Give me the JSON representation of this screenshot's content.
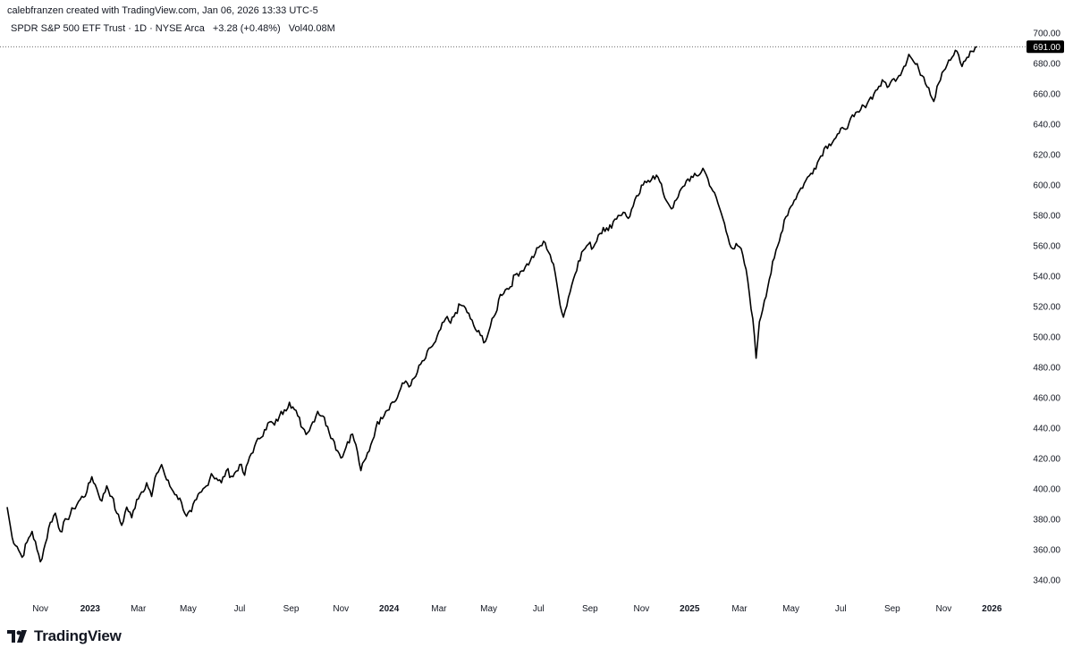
{
  "header": {
    "credit": "calebfranzen created with TradingView.com, Jan 06, 2026 13:33 UTC-5"
  },
  "legend": {
    "symbol": "SPDR S&P 500 ETF Trust · 1D · NYSE Arca",
    "change": "+3.28 (+0.48%)",
    "volume": "Vol40.08M"
  },
  "footer": {
    "brand": "TradingView"
  },
  "colors": {
    "line": "#000000",
    "price_tag_bg": "#000000",
    "price_tag_text": "#ffffff",
    "text": "#131722"
  },
  "chart_data": {
    "type": "line",
    "series": [
      {
        "values": [
          [
            0,
            388
          ],
          [
            3,
            368
          ],
          [
            6,
            362
          ],
          [
            9,
            355
          ],
          [
            12,
            365
          ],
          [
            15,
            372
          ],
          [
            18,
            360
          ],
          [
            20,
            352
          ],
          [
            23,
            364
          ],
          [
            26,
            378
          ],
          [
            29,
            384
          ],
          [
            32,
            372
          ],
          [
            36,
            380
          ],
          [
            40,
            387
          ],
          [
            44,
            393
          ],
          [
            48,
            398
          ],
          [
            51,
            408
          ],
          [
            54,
            400
          ],
          [
            57,
            392
          ],
          [
            60,
            402
          ],
          [
            63,
            395
          ],
          [
            66,
            384
          ],
          [
            69,
            376
          ],
          [
            72,
            388
          ],
          [
            75,
            381
          ],
          [
            78,
            393
          ],
          [
            81,
            398
          ],
          [
            84,
            404
          ],
          [
            87,
            395
          ],
          [
            90,
            410
          ],
          [
            93,
            416
          ],
          [
            96,
            406
          ],
          [
            99,
            400
          ],
          [
            102,
            396
          ],
          [
            105,
            391
          ],
          [
            108,
            382
          ],
          [
            111,
            385
          ],
          [
            114,
            393
          ],
          [
            117,
            398
          ],
          [
            120,
            402
          ],
          [
            123,
            410
          ],
          [
            126,
            407
          ],
          [
            129,
            404
          ],
          [
            132,
            412
          ],
          [
            136,
            408
          ],
          [
            140,
            416
          ],
          [
            143,
            409
          ],
          [
            146,
            421
          ],
          [
            149,
            428
          ],
          [
            152,
            433
          ],
          [
            155,
            439
          ],
          [
            158,
            444
          ],
          [
            161,
            442
          ],
          [
            164,
            448
          ],
          [
            167,
            452
          ],
          [
            170,
            457
          ],
          [
            172,
            454
          ],
          [
            175,
            448
          ],
          [
            178,
            440
          ],
          [
            181,
            437
          ],
          [
            184,
            444
          ],
          [
            187,
            451
          ],
          [
            190,
            448
          ],
          [
            193,
            441
          ],
          [
            196,
            433
          ],
          [
            199,
            425
          ],
          [
            202,
            421
          ],
          [
            205,
            431
          ],
          [
            208,
            436
          ],
          [
            211,
            424
          ],
          [
            213,
            412
          ],
          [
            216,
            420
          ],
          [
            219,
            429
          ],
          [
            222,
            440
          ],
          [
            225,
            447
          ],
          [
            228,
            451
          ],
          [
            231,
            456
          ],
          [
            234,
            458
          ],
          [
            237,
            466
          ],
          [
            240,
            471
          ],
          [
            243,
            468
          ],
          [
            246,
            474
          ],
          [
            249,
            482
          ],
          [
            252,
            486
          ],
          [
            255,
            493
          ],
          [
            258,
            497
          ],
          [
            261,
            505
          ],
          [
            264,
            512
          ],
          [
            267,
            509
          ],
          [
            270,
            516
          ],
          [
            273,
            521
          ],
          [
            276,
            519
          ],
          [
            279,
            512
          ],
          [
            282,
            505
          ],
          [
            285,
            501
          ],
          [
            288,
            497
          ],
          [
            291,
            507
          ],
          [
            294,
            515
          ],
          [
            297,
            528
          ],
          [
            300,
            531
          ],
          [
            303,
            533
          ],
          [
            306,
            541
          ],
          [
            309,
            543
          ],
          [
            312,
            546
          ],
          [
            315,
            550
          ],
          [
            318,
            555
          ],
          [
            321,
            560
          ],
          [
            324,
            562
          ],
          [
            327,
            554
          ],
          [
            330,
            542
          ],
          [
            332,
            528
          ],
          [
            335,
            513
          ],
          [
            338,
            526
          ],
          [
            341,
            538
          ],
          [
            344,
            550
          ],
          [
            347,
            557
          ],
          [
            350,
            561
          ],
          [
            353,
            559
          ],
          [
            356,
            567
          ],
          [
            359,
            572
          ],
          [
            362,
            570
          ],
          [
            365,
            576
          ],
          [
            368,
            580
          ],
          [
            371,
            582
          ],
          [
            374,
            578
          ],
          [
            377,
            586
          ],
          [
            380,
            593
          ],
          [
            383,
            600
          ],
          [
            386,
            603
          ],
          [
            389,
            606
          ],
          [
            392,
            605
          ],
          [
            395,
            595
          ],
          [
            398,
            588
          ],
          [
            401,
            585
          ],
          [
            404,
            592
          ],
          [
            407,
            599
          ],
          [
            410,
            604
          ],
          [
            413,
            605
          ],
          [
            416,
            606
          ],
          [
            419,
            611
          ],
          [
            422,
            604
          ],
          [
            425,
            596
          ],
          [
            428,
            588
          ],
          [
            431,
            578
          ],
          [
            434,
            566
          ],
          [
            437,
            558
          ],
          [
            440,
            560
          ],
          [
            443,
            554
          ],
          [
            446,
            537
          ],
          [
            449,
            512
          ],
          [
            451,
            486
          ],
          [
            453,
            510
          ],
          [
            456,
            524
          ],
          [
            459,
            538
          ],
          [
            462,
            552
          ],
          [
            465,
            563
          ],
          [
            468,
            577
          ],
          [
            471,
            584
          ],
          [
            474,
            590
          ],
          [
            477,
            596
          ],
          [
            480,
            601
          ],
          [
            483,
            606
          ],
          [
            486,
            611
          ],
          [
            489,
            617
          ],
          [
            492,
            624
          ],
          [
            495,
            627
          ],
          [
            498,
            630
          ],
          [
            501,
            634
          ],
          [
            504,
            637
          ],
          [
            507,
            641
          ],
          [
            510,
            645
          ],
          [
            513,
            648
          ],
          [
            516,
            652
          ],
          [
            519,
            656
          ],
          [
            522,
            660
          ],
          [
            525,
            665
          ],
          [
            528,
            668
          ],
          [
            531,
            665
          ],
          [
            534,
            670
          ],
          [
            537,
            672
          ],
          [
            540,
            678
          ],
          [
            543,
            686
          ],
          [
            546,
            681
          ],
          [
            549,
            676
          ],
          [
            552,
            671
          ],
          [
            555,
            664
          ],
          [
            558,
            655
          ],
          [
            560,
            665
          ],
          [
            563,
            674
          ],
          [
            566,
            679
          ],
          [
            569,
            684
          ],
          [
            572,
            688
          ],
          [
            575,
            678
          ],
          [
            578,
            684
          ],
          [
            581,
            688
          ],
          [
            584,
            691
          ]
        ]
      }
    ],
    "last_price": "691.00",
    "ylim": [
      332,
      704
    ],
    "y_ticks": [
      "700.00",
      "680.00",
      "660.00",
      "640.00",
      "620.00",
      "600.00",
      "580.00",
      "560.00",
      "540.00",
      "520.00",
      "500.00",
      "480.00",
      "460.00",
      "440.00",
      "420.00",
      "400.00",
      "380.00",
      "360.00",
      "340.00"
    ],
    "x_ticks": [
      {
        "label": "Nov",
        "bold": false,
        "d": 20
      },
      {
        "label": "2023",
        "bold": true,
        "d": 50
      },
      {
        "label": "Mar",
        "bold": false,
        "d": 79
      },
      {
        "label": "May",
        "bold": false,
        "d": 109
      },
      {
        "label": "Jul",
        "bold": false,
        "d": 140
      },
      {
        "label": "Sep",
        "bold": false,
        "d": 171
      },
      {
        "label": "Nov",
        "bold": false,
        "d": 201
      },
      {
        "label": "2024",
        "bold": true,
        "d": 230
      },
      {
        "label": "Mar",
        "bold": false,
        "d": 260
      },
      {
        "label": "May",
        "bold": false,
        "d": 290
      },
      {
        "label": "Jul",
        "bold": false,
        "d": 320
      },
      {
        "label": "Sep",
        "bold": false,
        "d": 351
      },
      {
        "label": "Nov",
        "bold": false,
        "d": 382
      },
      {
        "label": "2025",
        "bold": true,
        "d": 411
      },
      {
        "label": "Mar",
        "bold": false,
        "d": 441
      },
      {
        "label": "May",
        "bold": false,
        "d": 472
      },
      {
        "label": "Jul",
        "bold": false,
        "d": 502
      },
      {
        "label": "Sep",
        "bold": false,
        "d": 533
      },
      {
        "label": "Nov",
        "bold": false,
        "d": 564
      },
      {
        "label": "2026",
        "bold": true,
        "d": 593
      }
    ],
    "x_domain": [
      0,
      602
    ],
    "grid": false
  }
}
